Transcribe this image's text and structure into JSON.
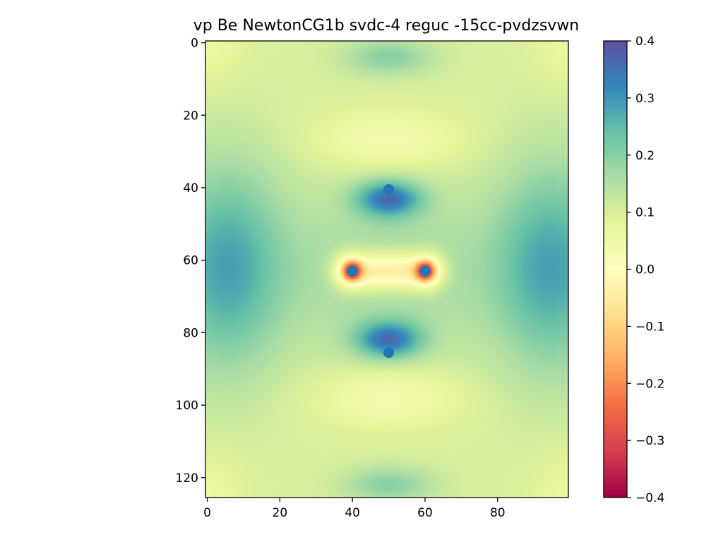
{
  "chart_data": {
    "type": "heatmap",
    "title": "vp Be NewtonCG1b svdc-4 reguc -15cc-pvdzsvwn",
    "xlabel": "",
    "ylabel": "",
    "grid": false,
    "x_range": [
      -0.5,
      99.5
    ],
    "y_range": [
      125.5,
      -0.5
    ],
    "x_ticks": [
      0,
      20,
      40,
      60,
      80
    ],
    "y_ticks": [
      0,
      20,
      40,
      60,
      80,
      100,
      120
    ],
    "colorbar": {
      "colormap": "Spectral",
      "range": [
        -0.4,
        0.4
      ],
      "ticks": [
        0.4,
        0.3,
        0.2,
        0.1,
        0.0,
        -0.1,
        -0.2,
        -0.3,
        -0.4
      ],
      "tick_labels": [
        "0.4",
        "0.3",
        "0.2",
        "0.1",
        "0.0",
        "−0.1",
        "−0.2",
        "−0.3",
        "−0.4"
      ]
    },
    "field_features": {
      "background_value": 0.1,
      "positive_lobes": [
        {
          "x": 5,
          "y": 62,
          "value": 0.28
        },
        {
          "x": 95,
          "y": 62,
          "value": 0.28
        },
        {
          "x": 50,
          "y": 43,
          "value": 0.33
        },
        {
          "x": 50,
          "y": 82,
          "value": 0.33
        },
        {
          "x": 50,
          "y": 4,
          "value": 0.2
        },
        {
          "x": 50,
          "y": 122,
          "value": 0.2
        }
      ],
      "central_plateau": {
        "x_from": 40,
        "x_to": 60,
        "y": 63,
        "value": -0.04
      },
      "nuclear_wells": [
        {
          "x": 40,
          "y": 63,
          "value": -0.4
        },
        {
          "x": 60,
          "y": 63,
          "value": -0.4
        }
      ]
    },
    "scatter_points": [
      {
        "x": 50,
        "y": 40.5
      },
      {
        "x": 40,
        "y": 63
      },
      {
        "x": 60,
        "y": 63
      },
      {
        "x": 50,
        "y": 85.5
      }
    ],
    "marker_color": "#1f77b4"
  }
}
